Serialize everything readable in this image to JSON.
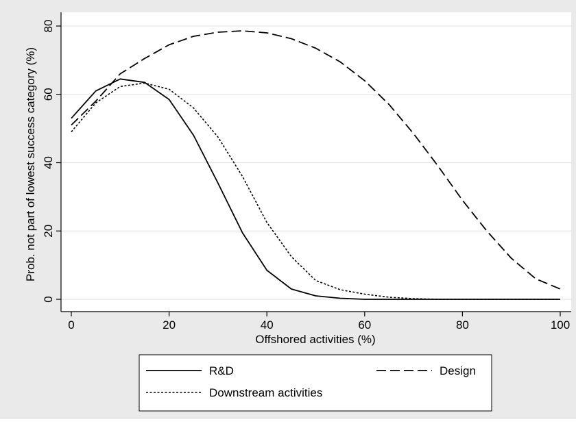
{
  "chart_data": {
    "type": "line",
    "title": "",
    "xlabel": "Offshored activities (%)",
    "ylabel": "Prob. not part of lowest success category (%)",
    "xlim": [
      0,
      100
    ],
    "ylim": [
      0,
      80
    ],
    "xticks": [
      0,
      20,
      40,
      60,
      80,
      100
    ],
    "yticks": [
      0,
      20,
      40,
      60,
      80
    ],
    "grid": "horizontal",
    "legend_position": "bottom",
    "background": "#eaeaea",
    "plot_background": "#ffffff",
    "x": [
      0,
      5,
      10,
      15,
      20,
      25,
      30,
      35,
      40,
      45,
      50,
      55,
      60,
      65,
      70,
      75,
      80,
      85,
      90,
      95,
      100
    ],
    "series": [
      {
        "name": "R&D",
        "dash": "solid",
        "values": [
          53,
          61,
          64.5,
          63.5,
          58.5,
          48,
          34,
          19.5,
          8.5,
          3,
          1,
          0.3,
          0,
          0,
          0,
          0,
          0,
          0,
          0,
          0,
          0
        ]
      },
      {
        "name": "Design",
        "dash": "dashed",
        "values": [
          51,
          58,
          66,
          70.5,
          74.5,
          77,
          78.2,
          78.6,
          78,
          76.3,
          73.5,
          69.5,
          64,
          57,
          48.5,
          39,
          29,
          20,
          12,
          6,
          3
        ]
      },
      {
        "name": "Downstream activities",
        "dash": "dotted",
        "values": [
          49,
          57.5,
          62.3,
          63.3,
          61.5,
          56,
          47.5,
          36,
          22.5,
          12.5,
          5.5,
          2.8,
          1.5,
          0.6,
          0.2,
          0,
          0,
          0,
          0,
          0,
          0
        ]
      }
    ]
  }
}
